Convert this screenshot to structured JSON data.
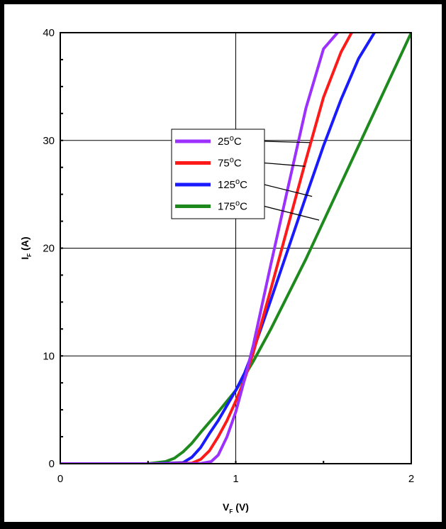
{
  "chart_data": {
    "type": "line",
    "title": "",
    "xlabel": "V",
    "xlabel_sub": "F",
    "xlabel_unit": "(V)",
    "ylabel": "I",
    "ylabel_sub": "F",
    "ylabel_unit": "(A)",
    "xlim": [
      0,
      2
    ],
    "ylim": [
      0,
      40
    ],
    "x_ticks": [
      "0",
      "1",
      "2"
    ],
    "y_ticks": [
      "0",
      "10",
      "20",
      "30",
      "40"
    ],
    "grid": true,
    "legend_position": "upper-left-center",
    "series": [
      {
        "name": "25°C",
        "color": "#9b30ff",
        "x": [
          0,
          0.6,
          0.8,
          0.86,
          0.9,
          0.95,
          1.0,
          1.05,
          1.1,
          1.2,
          1.3,
          1.4,
          1.5,
          1.58
        ],
        "y": [
          0,
          0,
          0.02,
          0.2,
          0.8,
          2.5,
          4.8,
          7.8,
          11,
          18.5,
          25.8,
          33,
          38.5,
          40
        ]
      },
      {
        "name": "75°C",
        "color": "#ff1a1a",
        "x": [
          0,
          0.6,
          0.75,
          0.8,
          0.85,
          0.9,
          0.95,
          1.0,
          1.05,
          1.1,
          1.2,
          1.3,
          1.4,
          1.5,
          1.6,
          1.66
        ],
        "y": [
          0,
          0,
          0.05,
          0.4,
          1.2,
          2.5,
          4.0,
          5.8,
          7.8,
          10.3,
          16.2,
          22.2,
          28.2,
          34,
          38.2,
          40
        ]
      },
      {
        "name": "125°C",
        "color": "#1a1aff",
        "x": [
          0,
          0.55,
          0.7,
          0.75,
          0.8,
          0.85,
          0.9,
          0.95,
          1.0,
          1.05,
          1.1,
          1.2,
          1.3,
          1.4,
          1.5,
          1.6,
          1.7,
          1.79
        ],
        "y": [
          0,
          0,
          0.1,
          0.6,
          1.5,
          2.8,
          4.0,
          5.4,
          6.8,
          8.4,
          10.5,
          15.2,
          20,
          24.8,
          29.5,
          33.8,
          37.6,
          40
        ]
      },
      {
        "name": "175°C",
        "color": "#1e8a1e",
        "x": [
          0,
          0.5,
          0.6,
          0.65,
          0.7,
          0.75,
          0.8,
          0.9,
          1.0,
          1.1,
          1.2,
          1.4,
          1.6,
          1.8,
          2.0
        ],
        "y": [
          0,
          0,
          0.2,
          0.5,
          1.1,
          1.9,
          2.9,
          4.8,
          6.8,
          9.5,
          12.5,
          19,
          26,
          33,
          40
        ]
      }
    ]
  }
}
